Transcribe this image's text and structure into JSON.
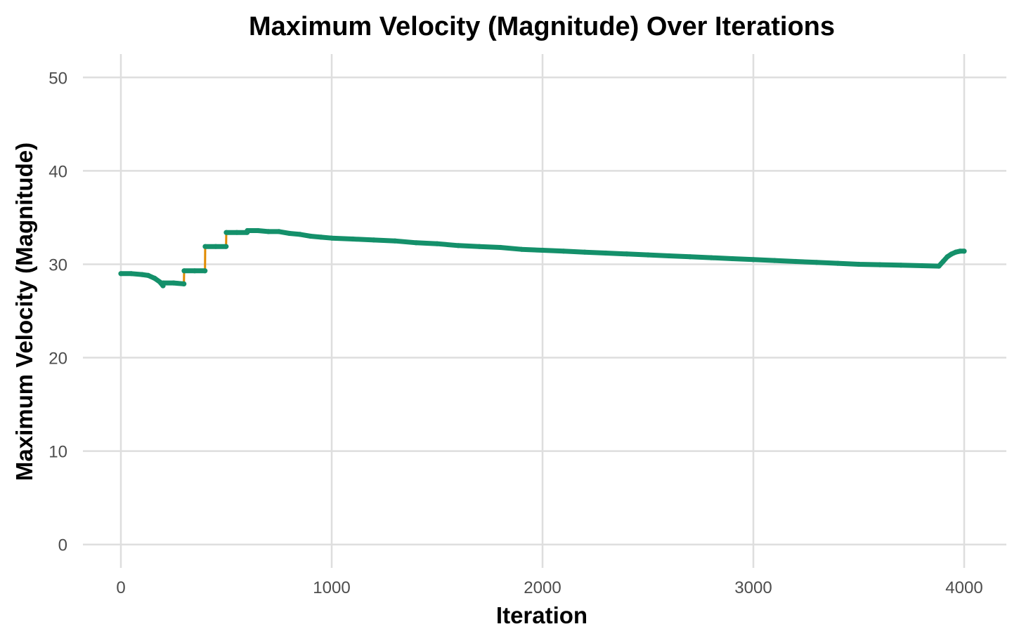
{
  "chart_data": {
    "type": "line",
    "title": "Maximum Velocity (Magnitude) Over Iterations",
    "xlabel": "Iteration",
    "ylabel": "Maximum Velocity (Magnitude)",
    "xlim": [
      -180,
      4200
    ],
    "ylim": [
      -2.5,
      52.5
    ],
    "x_ticks": [
      0,
      1000,
      2000,
      3000,
      4000
    ],
    "x_tick_labels": [
      "0",
      "1000",
      "2000",
      "3000",
      "4000"
    ],
    "y_ticks": [
      0,
      10,
      20,
      30,
      40,
      50
    ],
    "y_tick_labels": [
      "0",
      "10",
      "20",
      "30",
      "40",
      "50"
    ],
    "grid": true,
    "legend": "none",
    "colors": {
      "line": "#e08a00",
      "points": "#14906a",
      "grid": "#dedede"
    },
    "series": [
      {
        "x": [
          0,
          50,
          100,
          130,
          160,
          185,
          200,
          201,
          250,
          299,
          300,
          350,
          399,
          400,
          450,
          499,
          500,
          550,
          599,
          600,
          650,
          700,
          750,
          800,
          850,
          900,
          950,
          1000,
          1100,
          1200,
          1300,
          1400,
          1500,
          1600,
          1700,
          1800,
          1900,
          2000,
          2100,
          2200,
          2300,
          2400,
          2500,
          2600,
          2700,
          2800,
          2900,
          3000,
          3100,
          3200,
          3300,
          3400,
          3500,
          3600,
          3700,
          3800,
          3880,
          3900,
          3920,
          3940,
          3960,
          3980,
          4000
        ],
        "values": [
          29.0,
          29.0,
          28.9,
          28.8,
          28.5,
          28.1,
          27.7,
          28.0,
          28.0,
          27.9,
          29.3,
          29.3,
          29.3,
          31.9,
          31.9,
          31.9,
          33.4,
          33.4,
          33.4,
          33.6,
          33.6,
          33.5,
          33.5,
          33.3,
          33.2,
          33.0,
          32.9,
          32.8,
          32.7,
          32.6,
          32.5,
          32.3,
          32.2,
          32.0,
          31.9,
          31.8,
          31.6,
          31.5,
          31.4,
          31.3,
          31.2,
          31.1,
          31.0,
          30.9,
          30.8,
          30.7,
          30.6,
          30.5,
          30.4,
          30.3,
          30.2,
          30.1,
          30.0,
          29.95,
          29.9,
          29.85,
          29.8,
          30.3,
          30.8,
          31.1,
          31.3,
          31.4,
          31.4
        ]
      }
    ]
  }
}
